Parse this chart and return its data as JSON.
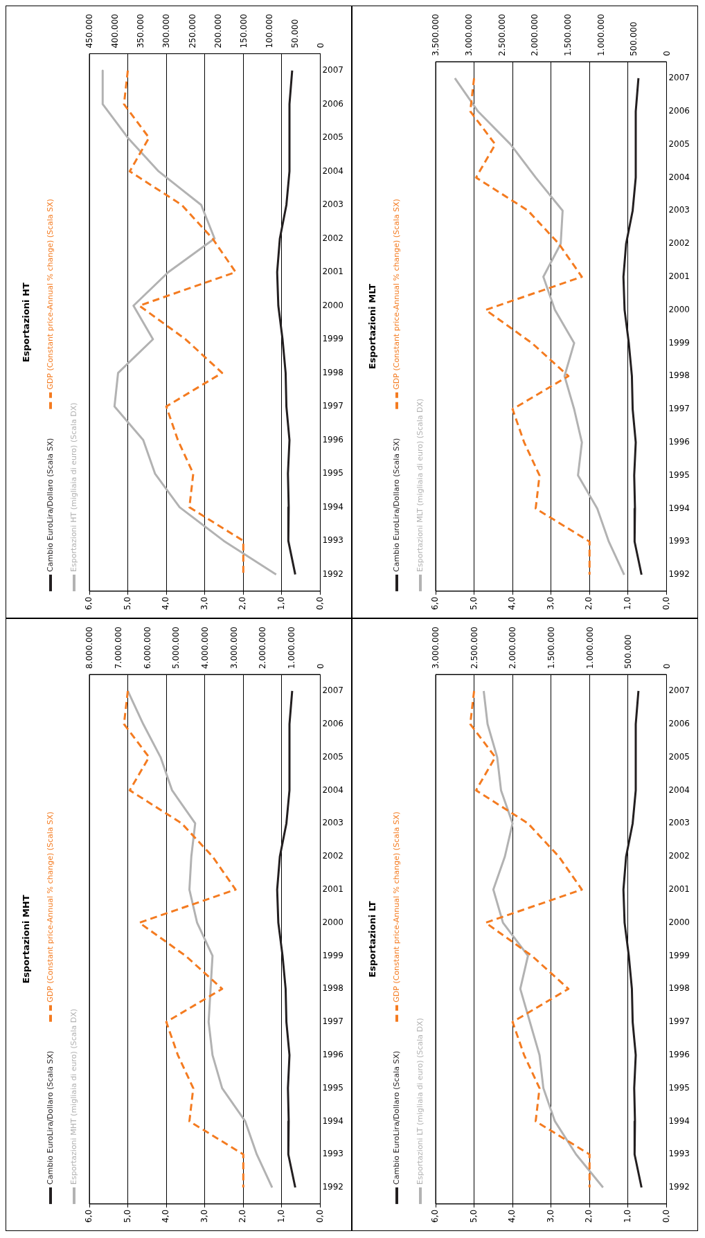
{
  "chart_data": [
    {
      "type": "line",
      "orientation": "horizontal",
      "title": "Esportazioni HT",
      "categories": [
        "2007",
        "2006",
        "2005",
        "2004",
        "2003",
        "2002",
        "2001",
        "2000",
        "1999",
        "1998",
        "1997",
        "1996",
        "1995",
        "1994",
        "1993",
        "1992"
      ],
      "xlim": [
        6,
        0
      ],
      "xticks": [
        {
          "value": 6,
          "label": "6,0"
        },
        {
          "value": 5,
          "label": "5,0"
        },
        {
          "value": 4,
          "label": "4,0"
        },
        {
          "value": 3,
          "label": "3,0"
        },
        {
          "value": 2,
          "label": "2,0"
        },
        {
          "value": 1,
          "label": "1,0"
        },
        {
          "value": 0,
          "label": "0,0"
        }
      ],
      "x2lim": [
        450000,
        0
      ],
      "x2ticks": [
        {
          "value": 450000,
          "label": "450.000"
        },
        {
          "value": 400000,
          "label": "400.000"
        },
        {
          "value": 350000,
          "label": "350.000"
        },
        {
          "value": 300000,
          "label": "300.000"
        },
        {
          "value": 250000,
          "label": "250.000"
        },
        {
          "value": 200000,
          "label": "200.000"
        },
        {
          "value": 150000,
          "label": "150.000"
        },
        {
          "value": 100000,
          "label": "100.000"
        },
        {
          "value": 50000,
          "label": "50.000"
        },
        {
          "value": 0,
          "label": "0"
        }
      ],
      "grid": "x",
      "legend": "left",
      "marker": "none",
      "series": [
        {
          "name": "Cambio EuroLira/Dollaro (Scala SX)",
          "color": "#231f20",
          "line_style": "solid",
          "values": [
            0.73,
            0.8,
            0.8,
            0.8,
            0.88,
            1.05,
            1.12,
            1.09,
            0.98,
            0.9,
            0.88,
            0.8,
            0.84,
            0.82,
            0.83,
            0.65
          ]
        },
        {
          "name": "GDP (Constant price-Annual % change) (Scala SX)",
          "color": "#f47b20",
          "line_style": "dashed",
          "values": [
            5.0,
            5.1,
            4.45,
            4.95,
            3.6,
            2.8,
            2.2,
            4.7,
            3.5,
            2.55,
            4.0,
            3.7,
            3.3,
            3.4,
            2.0,
            2.0
          ]
        },
        {
          "name": "Esportazioni HT (migliaia di euro) (Scala DX)",
          "color": "#b2b2b2",
          "line_style": "solid",
          "axis": "x2",
          "values": [
            424000,
            424000,
            375000,
            315000,
            232000,
            206000,
            296000,
            364000,
            326000,
            394000,
            401000,
            345000,
            322000,
            274000,
            188000,
            86000
          ]
        }
      ]
    },
    {
      "type": "line",
      "orientation": "horizontal",
      "title": "Esportazioni MLT",
      "categories": [
        "2007",
        "2006",
        "2005",
        "2004",
        "2003",
        "2002",
        "2001",
        "2000",
        "1999",
        "1998",
        "1997",
        "1996",
        "1995",
        "1994",
        "1993",
        "1992"
      ],
      "xlim": [
        6,
        0
      ],
      "xticks": [
        {
          "value": 6,
          "label": "6,0"
        },
        {
          "value": 5,
          "label": "5,0"
        },
        {
          "value": 4,
          "label": "4,0"
        },
        {
          "value": 3,
          "label": "3,0"
        },
        {
          "value": 2,
          "label": "2,0"
        },
        {
          "value": 1,
          "label": "1,0"
        },
        {
          "value": 0,
          "label": "0,0"
        }
      ],
      "x2lim": [
        3500000,
        0
      ],
      "x2ticks": [
        {
          "value": 3500000,
          "label": "3.500.000"
        },
        {
          "value": 3000000,
          "label": "3.000.000"
        },
        {
          "value": 2500000,
          "label": "2.500.000"
        },
        {
          "value": 2000000,
          "label": "2.000.000"
        },
        {
          "value": 1500000,
          "label": "1.500.000"
        },
        {
          "value": 1000000,
          "label": "1.000.000"
        },
        {
          "value": 500000,
          "label": "500.000"
        },
        {
          "value": 0,
          "label": "0"
        }
      ],
      "grid": "x",
      "legend": "left",
      "marker": "none",
      "series": [
        {
          "name": "Cambio EuroLira/Dollaro (Scala SX)",
          "color": "#231f20",
          "line_style": "solid",
          "values": [
            0.73,
            0.8,
            0.8,
            0.8,
            0.88,
            1.05,
            1.12,
            1.09,
            0.98,
            0.9,
            0.88,
            0.8,
            0.84,
            0.82,
            0.83,
            0.65
          ]
        },
        {
          "name": "GDP (Constant price-Annual % change) (Scala SX)",
          "color": "#f47b20",
          "line_style": "dashed",
          "values": [
            5.0,
            5.1,
            4.45,
            4.95,
            3.6,
            2.8,
            2.2,
            4.7,
            3.5,
            2.55,
            4.0,
            3.7,
            3.3,
            3.4,
            2.0,
            2.0
          ]
        },
        {
          "name": "Esportazioni MLT (migliaia di euro) (Scala DX)",
          "color": "#b2b2b2",
          "line_style": "solid",
          "axis": "x2",
          "values": [
            3208000,
            2858000,
            2363000,
            1983000,
            1575000,
            1604000,
            1867000,
            1692000,
            1400000,
            1546000,
            1400000,
            1283000,
            1342000,
            1050000,
            875000,
            642000
          ]
        }
      ]
    },
    {
      "type": "line",
      "orientation": "horizontal",
      "title": "Esportazioni MHT",
      "categories": [
        "2007",
        "2006",
        "2005",
        "2004",
        "2003",
        "2002",
        "2001",
        "2000",
        "1999",
        "1998",
        "1997",
        "1996",
        "1995",
        "1994",
        "1993",
        "1992"
      ],
      "xlim": [
        6,
        0
      ],
      "xticks": [
        {
          "value": 6,
          "label": "6,0"
        },
        {
          "value": 5,
          "label": "5,0"
        },
        {
          "value": 4,
          "label": "4,0"
        },
        {
          "value": 3,
          "label": "3,0"
        },
        {
          "value": 2,
          "label": "2,0"
        },
        {
          "value": 1,
          "label": "1,0"
        },
        {
          "value": 0,
          "label": "0,0"
        }
      ],
      "x2lim": [
        8000000,
        0
      ],
      "x2ticks": [
        {
          "value": 8000000,
          "label": "8.000.000"
        },
        {
          "value": 7000000,
          "label": "7.000.000"
        },
        {
          "value": 6000000,
          "label": "6.000.000"
        },
        {
          "value": 5000000,
          "label": "5.000.000"
        },
        {
          "value": 4000000,
          "label": "4.000.000"
        },
        {
          "value": 3000000,
          "label": "3.000.000"
        },
        {
          "value": 2000000,
          "label": "2.000.000"
        },
        {
          "value": 1000000,
          "label": "1.000.000"
        },
        {
          "value": 0,
          "label": "0"
        }
      ],
      "grid": "x",
      "legend": "left",
      "marker": "none",
      "series": [
        {
          "name": "Cambio EuroLira/Dollaro (Scala SX)",
          "color": "#231f20",
          "line_style": "solid",
          "values": [
            0.73,
            0.8,
            0.8,
            0.8,
            0.88,
            1.05,
            1.12,
            1.09,
            0.98,
            0.9,
            0.88,
            0.8,
            0.84,
            0.82,
            0.83,
            0.65
          ]
        },
        {
          "name": "GDP (Constant price-Annual % change) (Scala SX)",
          "color": "#f47b20",
          "line_style": "dashed",
          "values": [
            5.0,
            5.1,
            4.45,
            4.95,
            3.6,
            2.8,
            2.2,
            4.7,
            3.5,
            2.55,
            4.0,
            3.7,
            3.3,
            3.4,
            2.0,
            2.0
          ]
        },
        {
          "name": "Esportazioni MHT (migliaia di euro) (Scala DX)",
          "color": "#b2b2b2",
          "line_style": "solid",
          "axis": "x2",
          "values": [
            6667000,
            6133000,
            5533000,
            5133000,
            4333000,
            4467000,
            4533000,
            4267000,
            3733000,
            3800000,
            3867000,
            3733000,
            3400000,
            2600000,
            2200000,
            1667000
          ]
        }
      ]
    },
    {
      "type": "line",
      "orientation": "horizontal",
      "title": "Esportazioni LT",
      "categories": [
        "2007",
        "2006",
        "2005",
        "2004",
        "2003",
        "2002",
        "2001",
        "2000",
        "1999",
        "1998",
        "1997",
        "1996",
        "1995",
        "1994",
        "1993",
        "1992"
      ],
      "xlim": [
        6,
        0
      ],
      "xticks": [
        {
          "value": 6,
          "label": "6,0"
        },
        {
          "value": 5,
          "label": "5,0"
        },
        {
          "value": 4,
          "label": "4,0"
        },
        {
          "value": 3,
          "label": "3,0"
        },
        {
          "value": 2,
          "label": "2,0"
        },
        {
          "value": 1,
          "label": "1,0"
        },
        {
          "value": 0,
          "label": "0,0"
        }
      ],
      "x2lim": [
        3000000,
        0
      ],
      "x2ticks": [
        {
          "value": 3000000,
          "label": "3.000.000"
        },
        {
          "value": 2500000,
          "label": "2.500.000"
        },
        {
          "value": 2000000,
          "label": "2.000.000"
        },
        {
          "value": 1500000,
          "label": "1.500.000"
        },
        {
          "value": 1000000,
          "label": "1.000.000"
        },
        {
          "value": 500000,
          "label": "500.000"
        },
        {
          "value": 0,
          "label": "0"
        }
      ],
      "grid": "x",
      "legend": "left",
      "marker": "none",
      "series": [
        {
          "name": "Cambio EuroLira/Dollaro (Scala SX)",
          "color": "#231f20",
          "line_style": "solid",
          "values": [
            0.73,
            0.8,
            0.8,
            0.8,
            0.88,
            1.05,
            1.12,
            1.09,
            0.98,
            0.9,
            0.88,
            0.8,
            0.84,
            0.82,
            0.83,
            0.65
          ]
        },
        {
          "name": "GDP (Constant price-Annual % change) (Scala SX)",
          "color": "#f47b20",
          "line_style": "dashed",
          "values": [
            5.0,
            5.1,
            4.45,
            4.95,
            3.6,
            2.8,
            2.2,
            4.7,
            3.5,
            2.55,
            4.0,
            3.7,
            3.3,
            3.4,
            2.0,
            2.0
          ]
        },
        {
          "name": "Esportazioni LT (migliaia di euro) (Scala DX)",
          "color": "#b2b2b2",
          "line_style": "solid",
          "axis": "x2",
          "values": [
            2375000,
            2325000,
            2200000,
            2150000,
            2000000,
            2100000,
            2250000,
            2125000,
            1800000,
            1900000,
            1775000,
            1650000,
            1600000,
            1450000,
            1175000,
            825000
          ]
        }
      ]
    }
  ]
}
